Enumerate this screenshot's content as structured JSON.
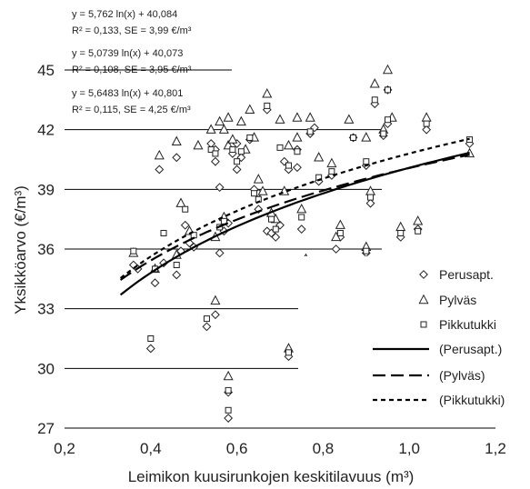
{
  "chart_data": {
    "type": "scatter",
    "xlabel": "Leimikon kuusirunkojen keskitilavuus (m³)",
    "ylabel": "Yksikköarvo (€/m³)",
    "xlim": [
      0.2,
      1.2
    ],
    "ylim": [
      27,
      45
    ],
    "x_ticks": [
      "0,2",
      "0,4",
      "0,6",
      "0,8",
      "1,0",
      "1,2"
    ],
    "y_ticks": [
      "27",
      "30",
      "33",
      "36",
      "39",
      "42",
      "45"
    ],
    "grid": "horizontal",
    "legend_position": "bottom-right",
    "equations": [
      {
        "formula": "y = 5,762 ln(x) + 40,084",
        "stats": "R² = 0,133, SE = 3,99 €/m³"
      },
      {
        "formula": "y = 5,0739 ln(x) + 40,073",
        "stats": "R² = 0,108, SE = 3,95 €/m³"
      },
      {
        "formula": "y = 5,6483 ln(x) + 40,801",
        "stats": "R² = 0,115, SE = 4,25 €/m³"
      }
    ],
    "series": [
      {
        "name": "Perusapt.",
        "marker": "diamond",
        "points": [
          [
            0.36,
            35.2
          ],
          [
            0.37,
            35.0
          ],
          [
            0.4,
            31.0
          ],
          [
            0.41,
            34.3
          ],
          [
            0.42,
            40.0
          ],
          [
            0.43,
            35.3
          ],
          [
            0.46,
            34.7
          ],
          [
            0.46,
            40.6
          ],
          [
            0.47,
            35.9
          ],
          [
            0.48,
            37.2
          ],
          [
            0.49,
            36.3
          ],
          [
            0.5,
            36.1
          ],
          [
            0.53,
            32.1
          ],
          [
            0.54,
            41.3
          ],
          [
            0.55,
            32.7
          ],
          [
            0.55,
            40.4
          ],
          [
            0.55,
            41.0
          ],
          [
            0.56,
            35.8
          ],
          [
            0.56,
            39.1
          ],
          [
            0.57,
            36.9
          ],
          [
            0.58,
            37.3
          ],
          [
            0.58,
            28.8
          ],
          [
            0.58,
            27.5
          ],
          [
            0.59,
            40.8
          ],
          [
            0.6,
            40.0
          ],
          [
            0.6,
            41.3
          ],
          [
            0.61,
            40.6
          ],
          [
            0.63,
            41.5
          ],
          [
            0.64,
            39.0
          ],
          [
            0.65,
            38.0
          ],
          [
            0.65,
            38.8
          ],
          [
            0.67,
            36.9
          ],
          [
            0.67,
            43.0
          ],
          [
            0.68,
            36.8
          ],
          [
            0.68,
            37.7
          ],
          [
            0.69,
            36.6
          ],
          [
            0.7,
            37.2
          ],
          [
            0.71,
            40.4
          ],
          [
            0.72,
            30.6
          ],
          [
            0.72,
            40.0
          ],
          [
            0.74,
            41.0
          ],
          [
            0.74,
            40.1
          ],
          [
            0.75,
            37.0
          ],
          [
            0.76,
            35.0
          ],
          [
            0.77,
            41.8
          ],
          [
            0.78,
            42.1
          ],
          [
            0.79,
            39.4
          ],
          [
            0.81,
            30.2
          ],
          [
            0.82,
            39.7
          ],
          [
            0.83,
            36.0
          ],
          [
            0.84,
            36.6
          ],
          [
            0.85,
            29.4
          ],
          [
            0.87,
            41.6
          ],
          [
            0.89,
            32.9
          ],
          [
            0.9,
            35.8
          ],
          [
            0.9,
            40.2
          ],
          [
            0.91,
            38.3
          ],
          [
            0.92,
            43.3
          ],
          [
            0.94,
            41.7
          ],
          [
            0.95,
            44.0
          ],
          [
            0.95,
            42.3
          ],
          [
            0.98,
            36.6
          ],
          [
            1.02,
            37.0
          ],
          [
            1.04,
            42.0
          ],
          [
            1.14,
            41.3
          ]
        ]
      },
      {
        "name": "Pylväs",
        "marker": "triangle",
        "points": [
          [
            0.36,
            35.8
          ],
          [
            0.41,
            35.0
          ],
          [
            0.42,
            40.7
          ],
          [
            0.46,
            35.7
          ],
          [
            0.46,
            41.4
          ],
          [
            0.47,
            38.3
          ],
          [
            0.49,
            36.9
          ],
          [
            0.51,
            41.2
          ],
          [
            0.54,
            42.0
          ],
          [
            0.55,
            33.4
          ],
          [
            0.55,
            36.6
          ],
          [
            0.56,
            42.4
          ],
          [
            0.57,
            37.6
          ],
          [
            0.57,
            42.0
          ],
          [
            0.58,
            29.6
          ],
          [
            0.58,
            42.6
          ],
          [
            0.58,
            41.2
          ],
          [
            0.59,
            41.5
          ],
          [
            0.61,
            42.4
          ],
          [
            0.62,
            41.0
          ],
          [
            0.63,
            43.0
          ],
          [
            0.64,
            41.6
          ],
          [
            0.65,
            39.5
          ],
          [
            0.66,
            38.9
          ],
          [
            0.67,
            43.8
          ],
          [
            0.68,
            37.8
          ],
          [
            0.69,
            37.5
          ],
          [
            0.7,
            42.5
          ],
          [
            0.71,
            38.9
          ],
          [
            0.72,
            31.0
          ],
          [
            0.72,
            41.2
          ],
          [
            0.74,
            41.6
          ],
          [
            0.74,
            42.6
          ],
          [
            0.75,
            38.0
          ],
          [
            0.76,
            35.5
          ],
          [
            0.77,
            42.6
          ],
          [
            0.79,
            40.6
          ],
          [
            0.82,
            40.3
          ],
          [
            0.83,
            36.6
          ],
          [
            0.84,
            37.2
          ],
          [
            0.85,
            29.9
          ],
          [
            0.86,
            42.5
          ],
          [
            0.89,
            33.4
          ],
          [
            0.9,
            36.1
          ],
          [
            0.9,
            41.6
          ],
          [
            0.91,
            38.9
          ],
          [
            0.92,
            44.3
          ],
          [
            0.94,
            42.0
          ],
          [
            0.95,
            45.0
          ],
          [
            0.96,
            42.6
          ],
          [
            0.98,
            37.1
          ],
          [
            1.02,
            37.4
          ],
          [
            1.04,
            42.6
          ],
          [
            1.14,
            40.8
          ]
        ]
      },
      {
        "name": "Pikkutukki",
        "marker": "square",
        "points": [
          [
            0.36,
            35.9
          ],
          [
            0.4,
            31.5
          ],
          [
            0.41,
            35.0
          ],
          [
            0.43,
            36.8
          ],
          [
            0.46,
            35.2
          ],
          [
            0.48,
            38.0
          ],
          [
            0.5,
            36.7
          ],
          [
            0.53,
            32.5
          ],
          [
            0.54,
            41.0
          ],
          [
            0.55,
            40.8
          ],
          [
            0.56,
            37.1
          ],
          [
            0.57,
            37.4
          ],
          [
            0.58,
            28.9
          ],
          [
            0.58,
            27.9
          ],
          [
            0.59,
            41.0
          ],
          [
            0.6,
            40.4
          ],
          [
            0.61,
            40.9
          ],
          [
            0.63,
            41.6
          ],
          [
            0.64,
            38.8
          ],
          [
            0.65,
            38.5
          ],
          [
            0.67,
            43.2
          ],
          [
            0.68,
            37.5
          ],
          [
            0.69,
            37.0
          ],
          [
            0.7,
            41.1
          ],
          [
            0.72,
            30.8
          ],
          [
            0.72,
            40.2
          ],
          [
            0.74,
            40.9
          ],
          [
            0.75,
            37.6
          ],
          [
            0.76,
            35.3
          ],
          [
            0.77,
            41.9
          ],
          [
            0.79,
            39.6
          ],
          [
            0.81,
            30.3
          ],
          [
            0.82,
            39.9
          ],
          [
            0.84,
            36.8
          ],
          [
            0.85,
            29.7
          ],
          [
            0.87,
            41.6
          ],
          [
            0.89,
            32.9
          ],
          [
            0.9,
            35.9
          ],
          [
            0.9,
            40.4
          ],
          [
            0.91,
            38.6
          ],
          [
            0.92,
            43.5
          ],
          [
            0.94,
            41.8
          ],
          [
            0.95,
            44.0
          ],
          [
            0.95,
            42.5
          ],
          [
            0.98,
            36.8
          ],
          [
            1.02,
            36.9
          ],
          [
            1.04,
            42.3
          ],
          [
            1.14,
            41.5
          ]
        ]
      }
    ],
    "trendlines": [
      {
        "name": "(Perusapt.)",
        "a": 5.762,
        "b": 40.084,
        "x_range": [
          0.33,
          1.14
        ],
        "style": "solid"
      },
      {
        "name": "(Pylväs)",
        "a": 5.0739,
        "b": 40.073,
        "x_range": [
          0.33,
          1.14
        ],
        "style": "long-dash"
      },
      {
        "name": "(Pikkutukki)",
        "a": 5.6483,
        "b": 40.801,
        "x_range": [
          0.33,
          1.14
        ],
        "style": "short-dash"
      }
    ]
  }
}
